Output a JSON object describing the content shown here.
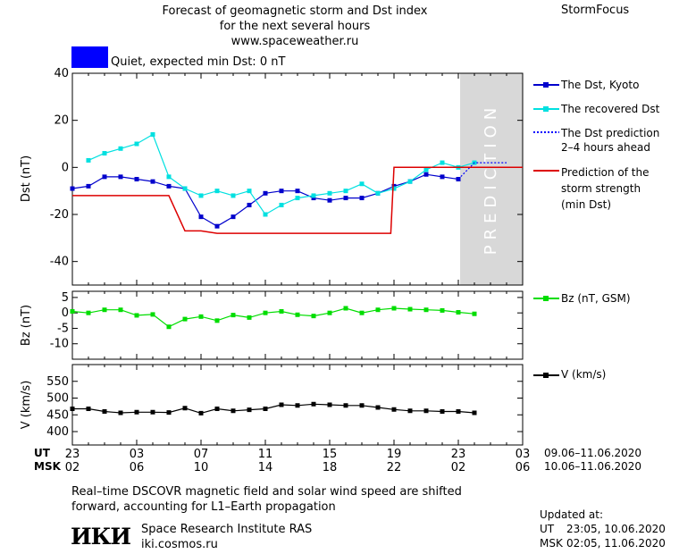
{
  "header": {
    "title_line1": "Forecast of geomagnetic storm and Dst index",
    "title_line2": "for the next several hours",
    "website": "www.spaceweather.ru",
    "brand": "StormFocus",
    "status_color": "#0000ff",
    "status_text": "Quiet, expected min Dst: 0 nT"
  },
  "legend": {
    "dst_kyoto": "The Dst, Kyoto",
    "recovered_dst": "The recovered Dst",
    "prediction_line1": "The Dst prediction",
    "prediction_line2": "2–4 hours ahead",
    "storm_line1": "Prediction of the",
    "storm_line2": "storm strength",
    "storm_line3": "(min Dst)",
    "bz": "Bz (nT, GSM)",
    "v": "V (km/s)"
  },
  "footer": {
    "ut_label": "UT",
    "msk_label": "MSK",
    "ut_range": "09.06–11.06.2020",
    "msk_range": "10.06–11.06.2020",
    "note_line1": "Real–time DSCOVR magnetic field and solar wind speed are shifted",
    "note_line2": "forward, accounting for L1–Earth propagation",
    "institute": "Space Research Institute RAS",
    "institute_url": "iki.cosmos.ru",
    "logo_text": "ИКИ",
    "updated_label": "Updated at:",
    "updated_ut_label": "UT",
    "updated_ut": "23:05, 10.06.2020",
    "updated_msk_label": "MSK",
    "updated_msk": "02:05, 11.06.2020"
  },
  "chart_data": [
    {
      "type": "line",
      "name": "dst",
      "ylabel": "Dst (nT)",
      "ylim": [
        -50,
        40
      ],
      "yticks": [
        -40,
        -20,
        0,
        20,
        40
      ],
      "xlim": [
        23,
        51
      ],
      "xticks_ut": [
        "23",
        "03",
        "07",
        "11",
        "15",
        "19",
        "23",
        "03"
      ],
      "xticks_msk": [
        "02",
        "06",
        "10",
        "14",
        "18",
        "22",
        "02",
        "06"
      ],
      "prediction_band": [
        47,
        51
      ],
      "prediction_label": "PREDICTION",
      "series": [
        {
          "name": "The Dst, Kyoto",
          "color": "#0000cc",
          "x": [
            23,
            24,
            25,
            26,
            27,
            28,
            29,
            30,
            31,
            32,
            33,
            34,
            35,
            36,
            37,
            38,
            39,
            40,
            41,
            42,
            43,
            44,
            45,
            46,
            47
          ],
          "y": [
            -9,
            -8,
            -4,
            -4,
            -5,
            -6,
            -8,
            -9,
            -21,
            -25,
            -21,
            -16,
            -11,
            -10,
            -10,
            -13,
            -14,
            -13,
            -13,
            -11,
            -8,
            -6,
            -3,
            -4,
            -5
          ]
        },
        {
          "name": "The recovered Dst",
          "color": "#00e0e0",
          "x": [
            24,
            25,
            26,
            27,
            28,
            29,
            30,
            31,
            32,
            33,
            34,
            35,
            36,
            37,
            38,
            39,
            40,
            41,
            42,
            43,
            44,
            45,
            46,
            47,
            48
          ],
          "y": [
            3,
            6,
            8,
            10,
            14,
            -4,
            -9,
            -12,
            -10,
            -12,
            -10,
            -20,
            -16,
            -13,
            -12,
            -11,
            -10,
            -7,
            -11,
            -9,
            -6,
            -1,
            2,
            0,
            2
          ]
        },
        {
          "name": "The Dst prediction 2–4 hours ahead",
          "color": "#0000ff",
          "x": [
            47,
            48,
            49,
            50
          ],
          "y": [
            -5,
            2,
            2,
            2
          ]
        },
        {
          "name": "Prediction of the storm strength (min Dst)",
          "color": "#dd0000",
          "x": [
            23,
            28,
            29,
            30,
            31,
            32,
            34,
            35,
            36,
            37,
            38,
            39,
            40,
            41,
            42,
            42.8,
            43,
            44,
            45,
            46,
            47,
            48,
            51
          ],
          "y": [
            -12,
            -12,
            -12,
            -27,
            -27,
            -28,
            -28,
            -28,
            -28,
            -28,
            -28,
            -28,
            -28,
            -28,
            -28,
            -28,
            0,
            0,
            0,
            0,
            0,
            0,
            0
          ]
        }
      ]
    },
    {
      "type": "line",
      "name": "bz",
      "ylabel": "Bz (nT)",
      "ylim": [
        -15,
        7
      ],
      "yticks": [
        -10,
        -5,
        0,
        5
      ],
      "xlim": [
        23,
        51
      ],
      "series": [
        {
          "name": "Bz (nT, GSM)",
          "color": "#00dd00",
          "x": [
            23,
            24,
            25,
            26,
            27,
            28,
            29,
            30,
            31,
            32,
            33,
            34,
            35,
            36,
            37,
            38,
            39,
            40,
            41,
            42,
            43,
            44,
            45,
            46,
            47,
            48
          ],
          "y": [
            0.5,
            0,
            1,
            1,
            -0.8,
            -0.5,
            -4.5,
            -2,
            -1.2,
            -2.5,
            -0.7,
            -1.5,
            0,
            0.5,
            -0.6,
            -1,
            0,
            1.5,
            0,
            1,
            1.5,
            1.2,
            1,
            0.8,
            0.2,
            -0.3
          ]
        }
      ]
    },
    {
      "type": "line",
      "name": "v",
      "ylabel": "V (km/s)",
      "ylim": [
        360,
        600
      ],
      "yticks": [
        400,
        450,
        500,
        550
      ],
      "xlim": [
        23,
        51
      ],
      "series": [
        {
          "name": "V (km/s)",
          "color": "#000000",
          "x": [
            23,
            24,
            25,
            26,
            27,
            28,
            29,
            30,
            31,
            32,
            33,
            34,
            35,
            36,
            37,
            38,
            39,
            40,
            41,
            42,
            43,
            44,
            45,
            46,
            47,
            48
          ],
          "y": [
            468,
            468,
            460,
            456,
            458,
            458,
            457,
            470,
            455,
            468,
            462,
            465,
            468,
            480,
            478,
            482,
            480,
            478,
            478,
            472,
            466,
            462,
            462,
            460,
            460,
            456
          ]
        }
      ]
    }
  ]
}
